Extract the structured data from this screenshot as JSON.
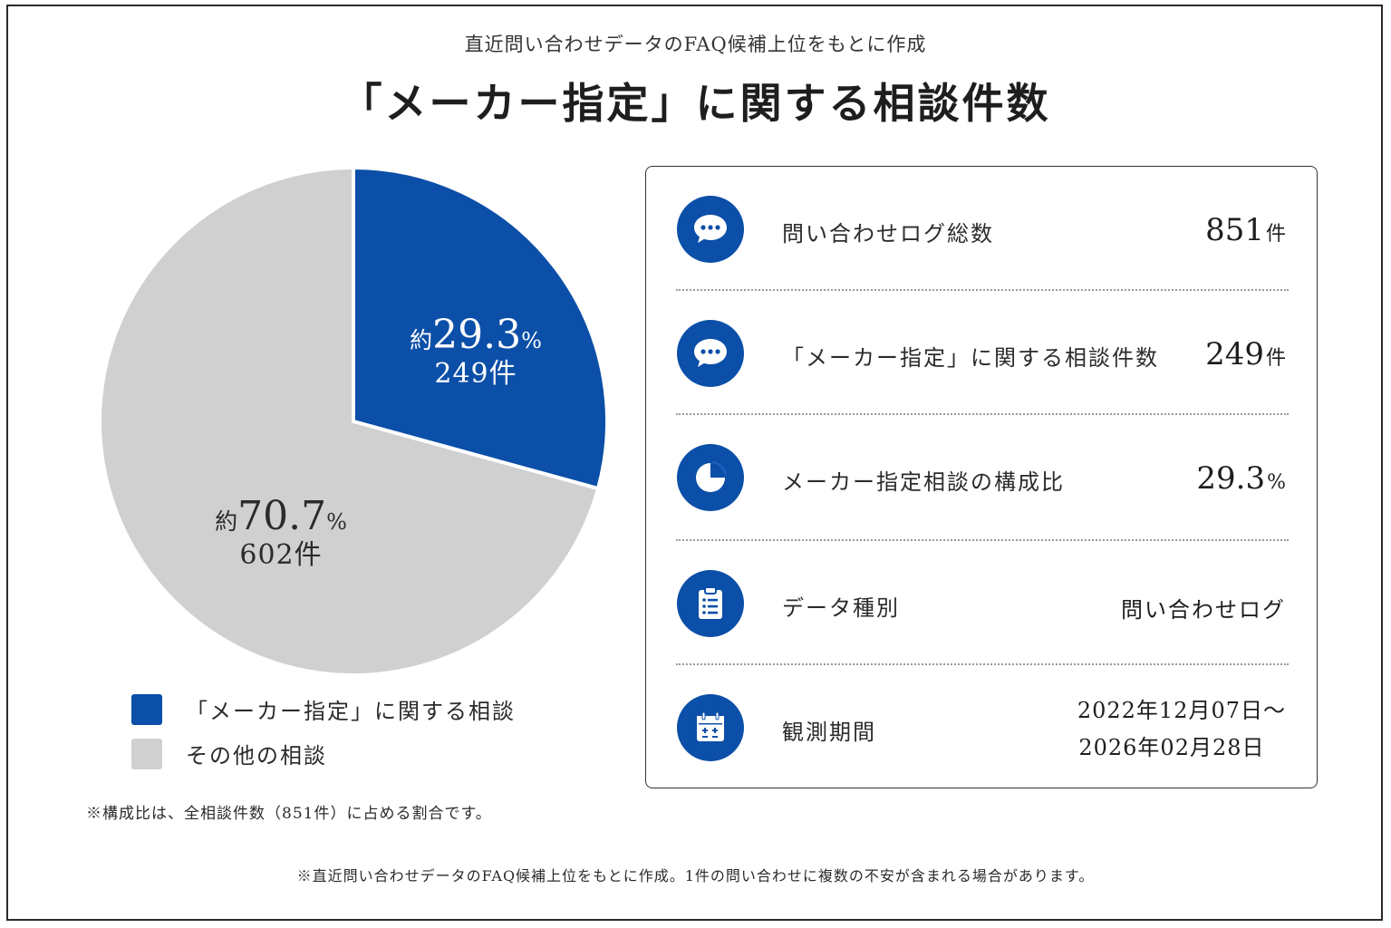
{
  "header": {
    "subtitle": "直近問い合わせデータのFAQ候補上位をもとに作成",
    "title": "「メーカー指定」に関する相談件数"
  },
  "colors": {
    "accent_blue": "#0b4fa8",
    "other_gray": "#d0d0d0"
  },
  "chart_data": {
    "type": "pie",
    "slices": [
      {
        "name": "「メーカー指定」に関する相談",
        "value": 249,
        "percent": 29.3,
        "color": "#0b4fa8",
        "label_prefix": "約",
        "pct_value": "29.3",
        "pct_unit": "%",
        "count_label": "249件"
      },
      {
        "name": "その他の相談",
        "value": 602,
        "percent": 70.7,
        "color": "#d0d0d0",
        "label_prefix": "約",
        "pct_value": "70.7",
        "pct_unit": "%",
        "count_label": "602件"
      }
    ],
    "total": 851,
    "start_angle": "12 o'clock, clockwise"
  },
  "legend": [
    {
      "label": "「メーカー指定」に関する相談",
      "color": "#0b4fa8"
    },
    {
      "label": "その他の相談",
      "color": "#d0d0d0"
    }
  ],
  "notes": {
    "ratio_note": "※構成比は、全相談件数（851件）に占める割合です。",
    "footer_note": "※直近問い合わせデータのFAQ候補上位をもとに作成。1件の問い合わせに複数の不安が含まれる場合があります。"
  },
  "stats": [
    {
      "icon": "chat-bubble-icon",
      "label": "問い合わせログ総数",
      "value": "851",
      "unit": "件"
    },
    {
      "icon": "chat-bubble-icon",
      "label": "「メーカー指定」に関する相談件数",
      "value": "249",
      "unit": "件"
    },
    {
      "icon": "pie-chart-icon",
      "label": "メーカー指定相談の構成比",
      "value": "29.3",
      "unit": "%"
    },
    {
      "icon": "clipboard-list-icon",
      "label": "データ種別",
      "value": "問い合わせログ"
    },
    {
      "icon": "calendar-icon",
      "label": "観測期間",
      "value_line1": "2022年12月07日～",
      "value_line2": "2026年02月28日"
    }
  ]
}
